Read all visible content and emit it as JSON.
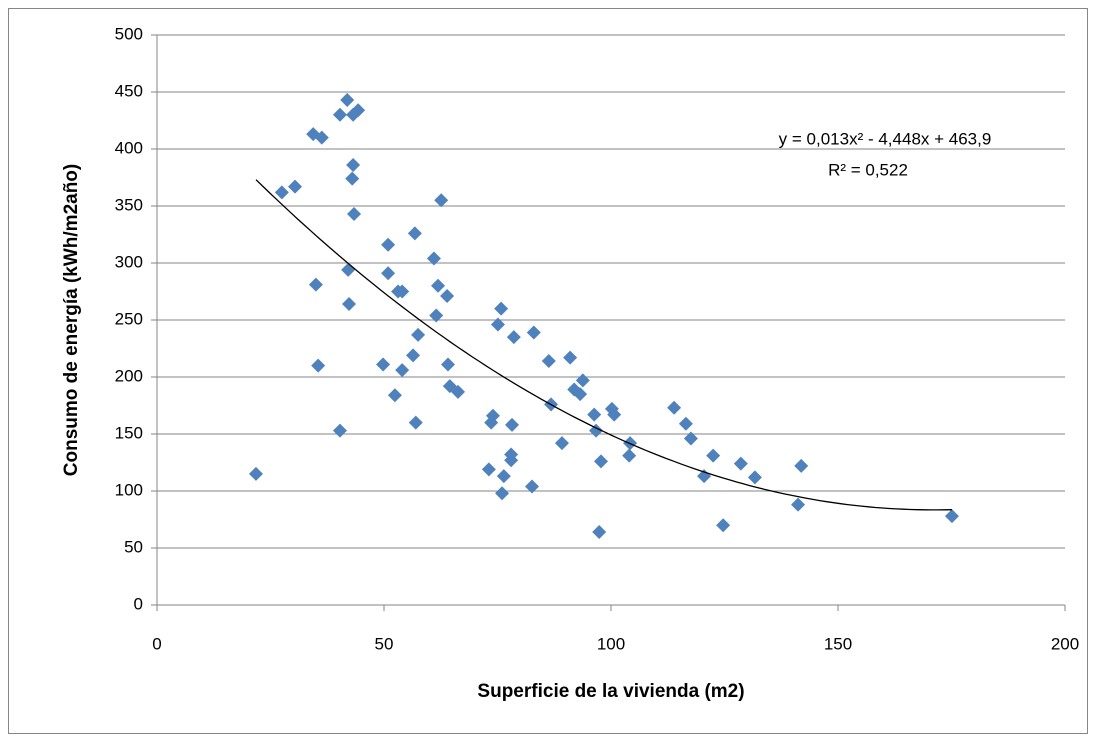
{
  "chart_data": {
    "type": "scatter",
    "x_label": "Superficie de la vivienda (m2)",
    "y_label": "Consumo de energía (kWh/m2año)",
    "xlim": [
      0,
      200
    ],
    "xticks": [
      0,
      50,
      100,
      150,
      200
    ],
    "ylim": [
      0,
      500
    ],
    "yticks": [
      0,
      50,
      100,
      150,
      200,
      250,
      300,
      350,
      400,
      450,
      500
    ],
    "grid": true,
    "color": "#4f81bd",
    "x": [
      21.8,
      27.5,
      30.4,
      34.4,
      36.3,
      35,
      35.5,
      40.3,
      40.3,
      41.9,
      42.1,
      42.3,
      43.2,
      44.3,
      43.2,
      43,
      43.4,
      49.8,
      50.9,
      50.9,
      52.4,
      53.1,
      54,
      54,
      56.4,
      56.8,
      57.5,
      57,
      61,
      61.5,
      61.9,
      62.6,
      63.9,
      64.1,
      64.5,
      66.3,
      73.1,
      74,
      73.6,
      75.1,
      75.8,
      76,
      76.4,
      78,
      78,
      78.2,
      78.6,
      82.6,
      83,
      86.3,
      86.8,
      89.2,
      91,
      91.9,
      93.2,
      93.8,
      96.3,
      96.7,
      97.4,
      97.8,
      100.2,
      100.7,
      104.2,
      104,
      113.9,
      116.5,
      117.6,
      120.5,
      122.5,
      124.7,
      128.6,
      131.7,
      141.2,
      141.9,
      175.1
    ],
    "values": [
      115,
      362,
      367,
      413,
      410,
      281,
      210,
      153,
      430,
      443,
      294,
      264,
      430,
      434,
      386,
      374,
      343,
      211,
      316,
      291,
      184,
      275,
      275,
      206,
      219,
      326,
      237,
      160,
      304,
      254,
      280,
      355,
      271,
      211,
      192,
      187,
      119,
      166,
      160,
      246,
      260,
      98,
      113,
      127,
      132,
      158,
      235,
      104,
      239,
      214,
      176,
      142,
      217,
      189,
      185,
      197,
      167,
      153,
      64,
      126,
      172,
      167,
      142,
      131,
      173,
      159,
      146,
      113,
      131,
      70,
      124,
      112,
      88,
      122,
      78
    ],
    "trendline": {
      "equation": "y = 0,013x² - 4,448x + 463,9",
      "r2": "R² = 0,522",
      "coefficients": [
        0.013,
        -4.448,
        463.9
      ],
      "color": "#000000"
    }
  }
}
